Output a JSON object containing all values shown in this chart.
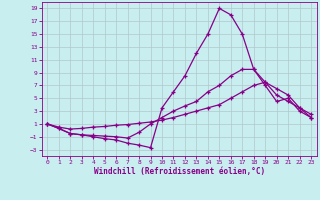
{
  "xlabel": "Windchill (Refroidissement éolien,°C)",
  "background_color": "#c8eef0",
  "grid_color": "#b0c8cc",
  "line_color": "#880088",
  "xlim": [
    -0.5,
    23.5
  ],
  "ylim": [
    -4,
    20
  ],
  "xticks": [
    0,
    1,
    2,
    3,
    4,
    5,
    6,
    7,
    8,
    9,
    10,
    11,
    12,
    13,
    14,
    15,
    16,
    17,
    18,
    19,
    20,
    21,
    22,
    23
  ],
  "yticks": [
    -3,
    -1,
    1,
    3,
    5,
    7,
    9,
    11,
    13,
    15,
    17,
    19
  ],
  "curve1_x": [
    0,
    1,
    2,
    3,
    4,
    5,
    6,
    7,
    8,
    9,
    10,
    11,
    12,
    13,
    14,
    15,
    16,
    17,
    18,
    19,
    20,
    21,
    22,
    23
  ],
  "curve1_y": [
    1,
    0.3,
    -0.5,
    -0.7,
    -1.0,
    -1.3,
    -1.5,
    -2.0,
    -2.3,
    -2.7,
    3.5,
    6.0,
    8.5,
    12.0,
    15.0,
    19.0,
    18.0,
    15.0,
    9.5,
    7.0,
    4.5,
    5.0,
    3.0,
    2.0
  ],
  "curve2_x": [
    0,
    1,
    2,
    3,
    4,
    5,
    6,
    7,
    8,
    9,
    10,
    11,
    12,
    13,
    14,
    15,
    16,
    17,
    18,
    19,
    20,
    21,
    22,
    23
  ],
  "curve2_y": [
    1,
    0.3,
    -0.5,
    -0.7,
    -0.8,
    -0.9,
    -1.0,
    -1.2,
    -0.3,
    1.0,
    2.0,
    3.0,
    3.8,
    4.5,
    6.0,
    7.0,
    8.5,
    9.5,
    9.5,
    7.5,
    5.5,
    4.5,
    3.5,
    2.5
  ],
  "curve3_x": [
    0,
    1,
    2,
    3,
    4,
    5,
    6,
    7,
    8,
    9,
    10,
    11,
    12,
    13,
    14,
    15,
    16,
    17,
    18,
    19,
    20,
    21,
    22,
    23
  ],
  "curve3_y": [
    1,
    0.5,
    0.2,
    0.3,
    0.5,
    0.6,
    0.8,
    0.9,
    1.1,
    1.3,
    1.6,
    2.0,
    2.5,
    3.0,
    3.5,
    4.0,
    5.0,
    6.0,
    7.0,
    7.5,
    6.5,
    5.5,
    3.5,
    2.0
  ]
}
